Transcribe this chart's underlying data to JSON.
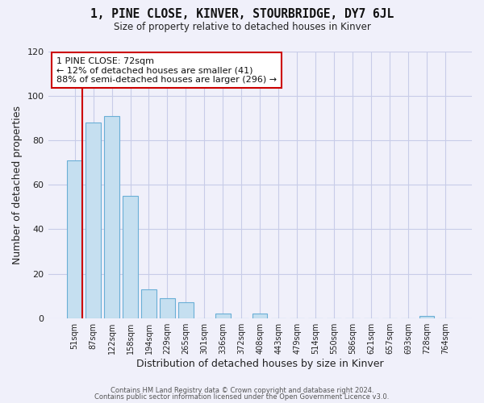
{
  "title": "1, PINE CLOSE, KINVER, STOURBRIDGE, DY7 6JL",
  "subtitle": "Size of property relative to detached houses in Kinver",
  "xlabel": "Distribution of detached houses by size in Kinver",
  "ylabel": "Number of detached properties",
  "bar_color": "#c5dff0",
  "bar_edge_color": "#6aafd6",
  "categories": [
    "51sqm",
    "87sqm",
    "122sqm",
    "158sqm",
    "194sqm",
    "229sqm",
    "265sqm",
    "301sqm",
    "336sqm",
    "372sqm",
    "408sqm",
    "443sqm",
    "479sqm",
    "514sqm",
    "550sqm",
    "586sqm",
    "621sqm",
    "657sqm",
    "693sqm",
    "728sqm",
    "764sqm"
  ],
  "values": [
    71,
    88,
    91,
    55,
    13,
    9,
    7,
    0,
    2,
    0,
    2,
    0,
    0,
    0,
    0,
    0,
    0,
    0,
    0,
    1,
    0
  ],
  "ylim": [
    0,
    120
  ],
  "yticks": [
    0,
    20,
    40,
    60,
    80,
    100,
    120
  ],
  "annotation_text_line1": "1 PINE CLOSE: 72sqm",
  "annotation_text_line2": "← 12% of detached houses are smaller (41)",
  "annotation_text_line3": "88% of semi-detached houses are larger (296) →",
  "marker_line_color": "#cc0000",
  "background_color": "#f0f0fa",
  "grid_color": "#c8cce8",
  "footer_line1": "Contains HM Land Registry data © Crown copyright and database right 2024.",
  "footer_line2": "Contains public sector information licensed under the Open Government Licence v3.0."
}
